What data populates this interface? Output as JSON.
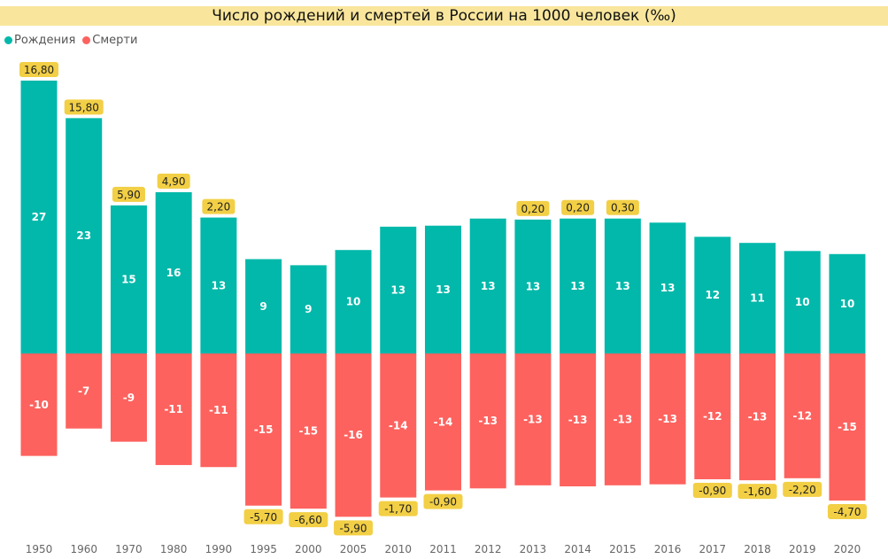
{
  "chart_data": {
    "type": "bar",
    "stacked": "diverging",
    "title": "Число рождений и смертей в России на 1000 человек (‰)",
    "legend_position": "top-left",
    "grid": false,
    "categories": [
      "1950",
      "1960",
      "1970",
      "1980",
      "1990",
      "1995",
      "2000",
      "2005",
      "2010",
      "2011",
      "2012",
      "2013",
      "2014",
      "2015",
      "2016",
      "2017",
      "2018",
      "2019",
      "2020"
    ],
    "series": [
      {
        "name": "Рождения",
        "color": "#01b8aa",
        "values": [
          26.9,
          23.2,
          14.6,
          15.9,
          13.4,
          9.3,
          8.7,
          10.2,
          12.5,
          12.6,
          13.3,
          13.2,
          13.3,
          13.3,
          12.9,
          11.5,
          10.9,
          10.1,
          9.8
        ],
        "labels": [
          "27",
          "23",
          "15",
          "16",
          "13",
          "9",
          "9",
          "10",
          "13",
          "13",
          "13",
          "13",
          "13",
          "13",
          "13",
          "12",
          "11",
          "10",
          "10"
        ]
      },
      {
        "name": "Смерти",
        "color": "#fd625e",
        "values": [
          -10.1,
          -7.4,
          -8.7,
          -11.0,
          -11.2,
          -15.0,
          -15.3,
          -16.1,
          -14.2,
          -13.5,
          -13.3,
          -13.0,
          -13.1,
          -13.0,
          -12.9,
          -12.4,
          -12.5,
          -12.3,
          -14.5
        ],
        "labels": [
          "-10",
          "-7",
          "-9",
          "-11",
          "-11",
          "-15",
          "-15",
          "-16",
          "-14",
          "-14",
          "-13",
          "-13",
          "-13",
          "-13",
          "-13",
          "-12",
          "-13",
          "-12",
          "-15"
        ]
      }
    ],
    "net_labels": [
      "16,80",
      "15,80",
      "5,90",
      "4,90",
      "2,20",
      "-5,70",
      "-6,60",
      "-5,90",
      "-1,70",
      "-0,90",
      "",
      "0,20",
      "0,20",
      "0,30",
      "",
      "-0,90",
      "-1,60",
      "-2,20",
      "-4,70"
    ],
    "net_label_color": "#f2cf45",
    "ylim": [
      -17,
      27.5
    ]
  }
}
